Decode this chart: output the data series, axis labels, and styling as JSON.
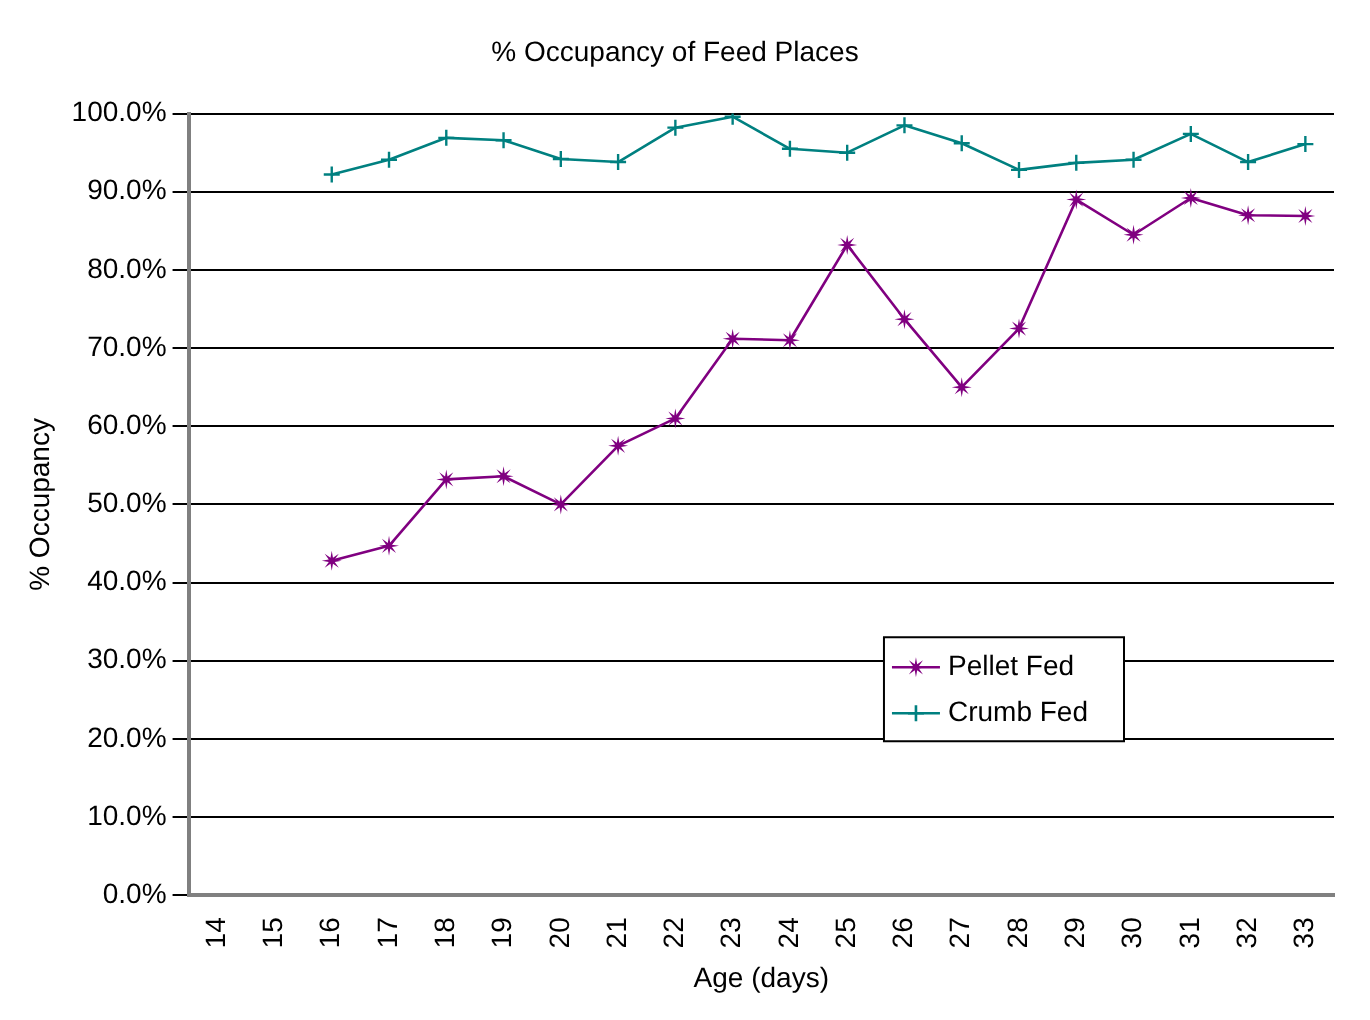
{
  "chart_data": {
    "type": "line",
    "title": "% Occupancy of Feed Places",
    "xlabel": "Age (days)",
    "ylabel": "% Occupancy",
    "categories": [
      "14",
      "15",
      "16",
      "17",
      "18",
      "19",
      "20",
      "21",
      "22",
      "23",
      "24",
      "25",
      "26",
      "27",
      "28",
      "29",
      "30",
      "31",
      "32",
      "33"
    ],
    "series": [
      {
        "name": "Pellet Fed",
        "color": "#800080",
        "marker": "star",
        "values": [
          null,
          null,
          42.8,
          44.7,
          53.2,
          53.6,
          50.0,
          57.5,
          61.0,
          71.2,
          71.0,
          83.2,
          73.7,
          65.0,
          72.5,
          89.0,
          84.5,
          89.2,
          87.0,
          86.9
        ]
      },
      {
        "name": "Crumb Fed",
        "color": "#008080",
        "marker": "cross",
        "values": [
          null,
          null,
          92.2,
          94.1,
          96.9,
          96.6,
          94.2,
          93.8,
          98.2,
          99.6,
          95.5,
          95.0,
          98.5,
          96.2,
          92.8,
          93.7,
          94.1,
          97.4,
          93.8,
          96.1
        ]
      }
    ],
    "ylim": [
      0,
      100
    ],
    "yticks": [
      {
        "value": 0,
        "label": "0.0%"
      },
      {
        "value": 10,
        "label": "10.0%"
      },
      {
        "value": 20,
        "label": "20.0%"
      },
      {
        "value": 30,
        "label": "30.0%"
      },
      {
        "value": 40,
        "label": "40.0%"
      },
      {
        "value": 50,
        "label": "50.0%"
      },
      {
        "value": 60,
        "label": "60.0%"
      },
      {
        "value": 70,
        "label": "70.0%"
      },
      {
        "value": 80,
        "label": "80.0%"
      },
      {
        "value": 90,
        "label": "90.0%"
      },
      {
        "value": 100,
        "label": "100.0%"
      }
    ],
    "grid": "y",
    "legend": "right",
    "line_style": "solid"
  }
}
